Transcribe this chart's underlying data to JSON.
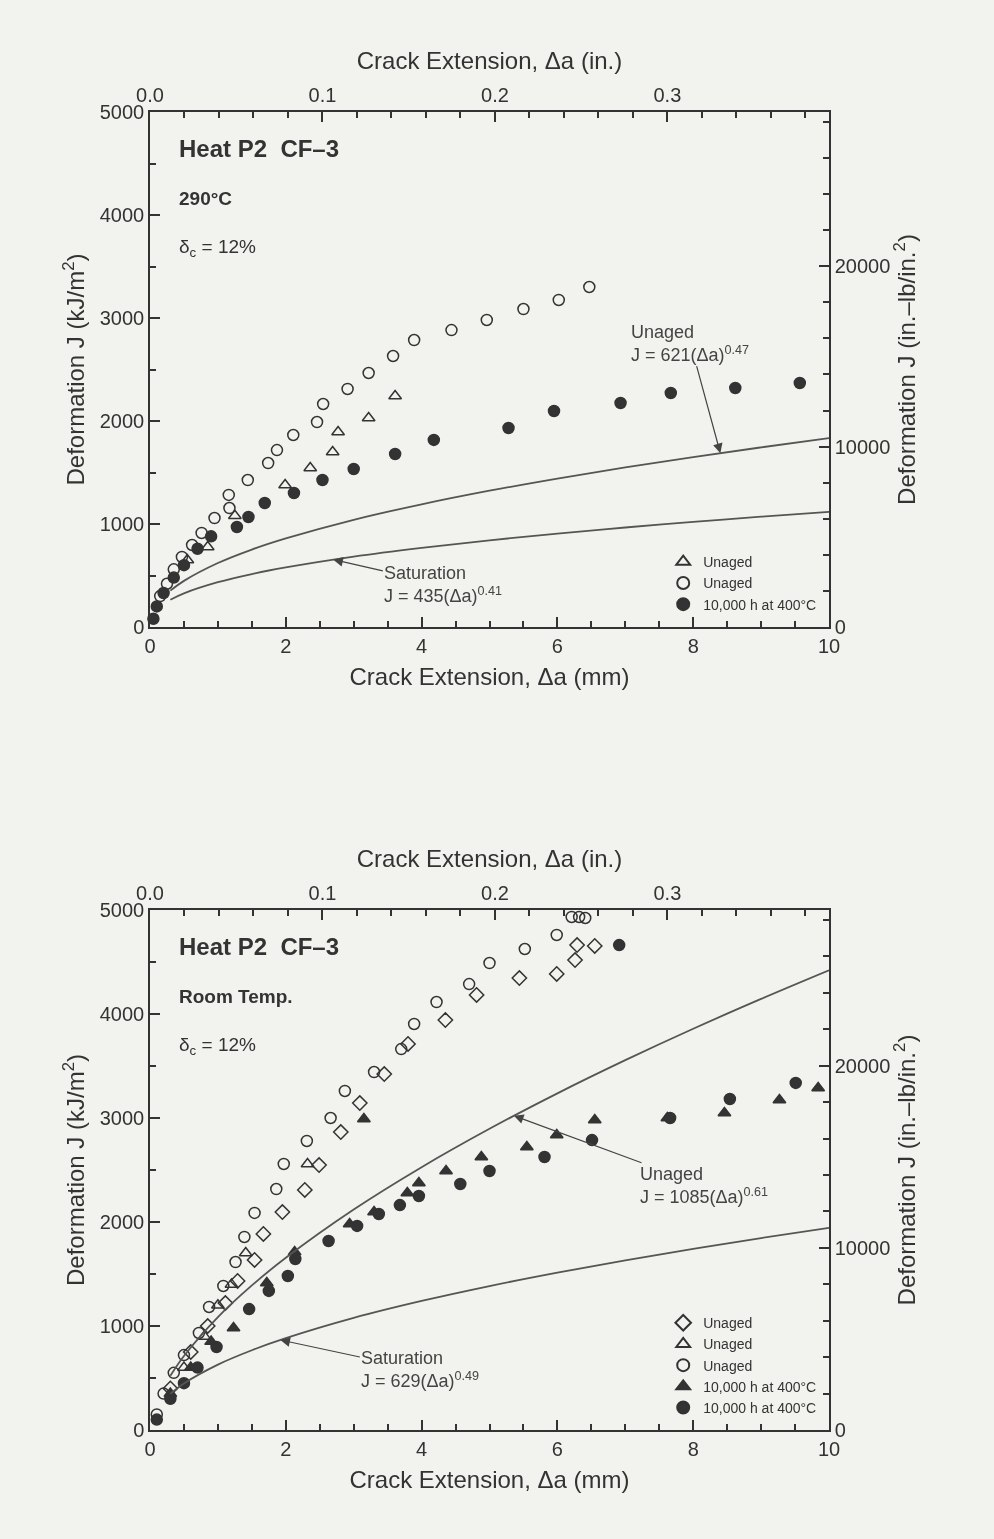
{
  "chart_data": [
    {
      "type": "scatter",
      "xlabel": "Crack Extension, Δa (mm)",
      "x2label": "Crack Extension, Δa (in.)",
      "ylabel": "Deformation J (kJ/m$^{2}$)",
      "y2label": "Deformation J (in.–lb/in.$^{2}$)",
      "xlim": [
        0,
        10
      ],
      "xticks": [
        0,
        2,
        4,
        6,
        8,
        10
      ],
      "ylim": [
        0,
        5000
      ],
      "yticks": [
        0,
        1000,
        2000,
        3000,
        4000,
        5000
      ],
      "x2lim": [
        0,
        0.3937
      ],
      "x2ticks": [
        {
          "value": 0,
          "label": "0.0"
        },
        0.1,
        0.2,
        0.3
      ],
      "y2lim": [
        0,
        28551
      ],
      "y2ticks": [
        0,
        10000,
        20000
      ],
      "grid": false,
      "legend": "bottom right",
      "annotations": [
        "Heat P2  CF–3",
        "290°C",
        "δ$_{c}$ = 12%",
        {
          "text": "Unaged\nJ = 621(Δa)$^{0.47}$",
          "x": 8.4,
          "y": 1688
        },
        {
          "text": "Saturation\nJ = 435(Δa)$^{0.41}$",
          "x": 2.7,
          "y": 654
        }
      ],
      "series": [
        {
          "name": "Unaged",
          "type": "scatter",
          "marker": "triangle-open",
          "color": "#333333",
          "x": [
            0.55,
            0.85,
            1.25,
            1.99,
            2.36,
            2.69,
            2.77,
            3.22,
            3.61
          ],
          "values": [
            650,
            777,
            1080,
            1379,
            1544,
            1699,
            1893,
            2029,
            2243
          ]
        },
        {
          "name": "Unaged",
          "type": "scatter",
          "marker": "circle-open",
          "color": "#333333",
          "x": [
            0.15,
            0.25,
            0.35,
            0.47,
            0.62,
            0.76,
            0.95,
            1.17,
            1.16,
            1.44,
            1.74,
            1.87,
            2.11,
            2.46,
            2.55,
            2.91,
            3.22,
            3.58,
            3.89,
            4.44,
            4.96,
            5.5,
            6.02,
            6.47
          ],
          "values": [
            300,
            420,
            560,
            680,
            796,
            913,
            1058,
            1155,
            1282,
            1427,
            1592,
            1718,
            1864,
            1990,
            2165,
            2311,
            2466,
            2631,
            2786,
            2883,
            2981,
            3087,
            3175,
            3301
          ]
        },
        {
          "name": "10,000 h at 400°C",
          "type": "scatter",
          "marker": "circle",
          "color": "#333333",
          "x": [
            0.05,
            0.1,
            0.2,
            0.35,
            0.5,
            0.7,
            0.9,
            1.28,
            1.45,
            1.69,
            2.12,
            2.54,
            3.0,
            3.61,
            4.18,
            5.28,
            5.95,
            6.93,
            7.67,
            8.62,
            9.57
          ],
          "values": [
            80,
            200,
            330,
            480,
            600,
            760,
            880,
            971,
            1068,
            1204,
            1301,
            1427,
            1534,
            1680,
            1816,
            1932,
            2097,
            2175,
            2272,
            2320,
            2369
          ]
        },
        {
          "type": "line",
          "marker": "none",
          "color": "#555555",
          "x": [
            0.3,
            0.5,
            1,
            1.5,
            2,
            3,
            4,
            5,
            6,
            7,
            8,
            9,
            10
          ],
          "values": [
            353,
            448,
            621,
            752,
            860,
            1041,
            1191,
            1323,
            1441,
            1550,
            1650,
            1744,
            1833
          ]
        },
        {
          "type": "line",
          "marker": "none",
          "color": "#555555",
          "x": [
            0.3,
            0.5,
            1,
            1.5,
            2,
            3,
            4,
            5,
            6,
            7,
            8,
            9,
            10
          ],
          "values": [
            265,
            327,
            435,
            514,
            578,
            683,
            768,
            842,
            907,
            966,
            1020,
            1071,
            1118
          ]
        }
      ]
    },
    {
      "type": "scatter",
      "xlabel": "Crack Extension, Δa (mm)",
      "x2label": "Crack Extension, Δa (in.)",
      "ylabel": "Deformation J (kJ/m$^{2}$)",
      "y2label": "Deformation J (in.–lb/in.$^{2}$)",
      "xlim": [
        0,
        10
      ],
      "xticks": [
        0,
        2,
        4,
        6,
        8,
        10
      ],
      "ylim": [
        0,
        5000
      ],
      "yticks": [
        0,
        1000,
        2000,
        3000,
        4000,
        5000
      ],
      "x2lim": [
        0,
        0.3937
      ],
      "x2ticks": [
        {
          "value": 0,
          "label": "0.0"
        },
        0.1,
        0.2,
        0.3
      ],
      "y2lim": [
        0,
        28551
      ],
      "y2ticks": [
        0,
        10000,
        20000
      ],
      "grid": false,
      "legend": "bottom right",
      "annotations": [
        "Heat P2  CF–3",
        "Room Temp.",
        "δ$_{c}$ = 12%",
        {
          "text": "Unaged\nJ = 1085(Δa)$^{0.61}$",
          "x": 5.36,
          "y": 3022
        },
        {
          "text": "Saturation\nJ = 629(Δa)$^{0.49}$",
          "x": 1.92,
          "y": 866
        }
      ],
      "series": [
        {
          "name": "Unaged",
          "type": "scatter",
          "marker": "diamond-open",
          "color": "#333333",
          "x": [
            0.3,
            0.6,
            0.85,
            1.11,
            1.29,
            1.54,
            1.67,
            1.95,
            2.28,
            2.49,
            2.81,
            3.09,
            3.45,
            3.8,
            4.35,
            4.81,
            5.44,
            5.99,
            6.26,
            6.29,
            6.55
          ],
          "values": [
            400,
            750,
            1000,
            1221,
            1433,
            1635,
            1885,
            2096,
            2308,
            2548,
            2865,
            3144,
            3423,
            3712,
            3942,
            4183,
            4346,
            4385,
            4519,
            4663,
            4654
          ]
        },
        {
          "name": "Unaged",
          "type": "scatter",
          "marker": "triangle-open",
          "color": "#333333",
          "x": [
            0.5,
            0.8,
            1.0,
            1.2,
            1.41,
            2.32
          ],
          "values": [
            600,
            900,
            1200,
            1400,
            1702,
            2558
          ]
        },
        {
          "name": "Unaged",
          "type": "scatter",
          "marker": "circle-open",
          "color": "#333333",
          "x": [
            0.1,
            0.2,
            0.35,
            0.5,
            0.72,
            0.87,
            1.08,
            1.26,
            1.39,
            1.54,
            1.86,
            1.97,
            2.31,
            2.66,
            2.87,
            3.3,
            3.7,
            3.89,
            4.22,
            4.7,
            5.0,
            5.52,
            5.99,
            6.21,
            6.32,
            6.41
          ],
          "values": [
            150,
            350,
            550,
            720,
            933,
            1183,
            1385,
            1615,
            1856,
            2087,
            2317,
            2558,
            2779,
            3000,
            3260,
            3442,
            3663,
            3904,
            4115,
            4288,
            4490,
            4625,
            4760,
            4933,
            4933,
            4923
          ]
        },
        {
          "name": "10,000 h at 400°C",
          "type": "scatter",
          "marker": "triangle",
          "color": "#333333",
          "x": [
            0.3,
            0.6,
            0.9,
            1.23,
            1.72,
            2.13,
            2.94,
            3.15,
            3.3,
            3.79,
            3.96,
            4.36,
            4.88,
            5.55,
            5.99,
            6.55,
            7.62,
            8.46,
            9.27,
            9.84
          ],
          "values": [
            350,
            600,
            850,
            981,
            1413,
            1712,
            1981,
            2990,
            2096,
            2279,
            2375,
            2490,
            2625,
            2721,
            2837,
            2981,
            3000,
            3048,
            3173,
            3288
          ]
        },
        {
          "name": "10,000 h at 400°C",
          "type": "scatter",
          "marker": "circle",
          "color": "#333333",
          "x": [
            0.1,
            0.3,
            0.5,
            0.7,
            0.98,
            1.46,
            1.75,
            2.03,
            2.14,
            2.63,
            3.05,
            3.37,
            3.68,
            3.96,
            4.57,
            5.0,
            5.81,
            6.51,
            6.91,
            7.66,
            8.54,
            9.51
          ],
          "values": [
            100,
            300,
            450,
            600,
            798,
            1163,
            1337,
            1481,
            1644,
            1817,
            1962,
            2077,
            2163,
            2250,
            2365,
            2490,
            2625,
            2788,
            4663,
            3000,
            3183,
            3337
          ]
        },
        {
          "type": "line",
          "marker": "none",
          "color": "#555555",
          "x": [
            0.3,
            0.5,
            1,
            1.5,
            2,
            3,
            4,
            5,
            6,
            7,
            8,
            9,
            10
          ],
          "values": [
            521,
            711,
            1085,
            1390,
            1656,
            2120,
            2527,
            2896,
            3237,
            3556,
            3858,
            4145,
            4420
          ]
        },
        {
          "type": "line",
          "marker": "none",
          "color": "#555555",
          "x": [
            0.3,
            0.5,
            1,
            1.5,
            2,
            3,
            4,
            5,
            6,
            7,
            8,
            9,
            10
          ],
          "values": [
            349,
            448,
            629,
            767,
            883,
            1078,
            1241,
            1384,
            1513,
            1632,
            1742,
            1846,
            1944
          ]
        }
      ]
    }
  ]
}
